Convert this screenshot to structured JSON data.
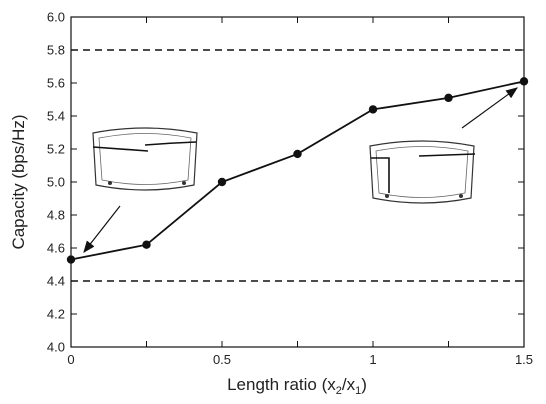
{
  "chart_data": {
    "type": "line",
    "title": "",
    "xlabel": {
      "main": "Length ratio (x",
      "sub1": "2",
      "mid": "/x",
      "sub2": "1",
      "end": ")"
    },
    "ylabel": "Capacity (bps/Hz)",
    "xlim": [
      0,
      1.5
    ],
    "ylim": [
      4.0,
      6.0
    ],
    "xticks": [
      0,
      0.25,
      0.5,
      0.75,
      1.0,
      1.25,
      1.5
    ],
    "xtick_labels": [
      "0",
      "",
      "0.5",
      "",
      "1",
      "",
      "1.5"
    ],
    "yticks": [
      4.0,
      4.2,
      4.4,
      4.6,
      4.8,
      5.0,
      5.2,
      5.4,
      5.6,
      5.8,
      6.0
    ],
    "ytick_labels": [
      "4.0",
      "4.2",
      "4.4",
      "4.6",
      "4.8",
      "5.0",
      "5.2",
      "5.4",
      "5.6",
      "5.8",
      "6.0"
    ],
    "grid": false,
    "series": [
      {
        "x": [
          0,
          0.25,
          0.5,
          0.75,
          1.0,
          1.25,
          1.5
        ],
        "values": [
          4.53,
          4.62,
          5.0,
          5.17,
          5.44,
          5.51,
          5.61
        ],
        "color": "#111111",
        "marker": "circle"
      }
    ],
    "reference_lines": [
      {
        "y": 5.8,
        "style": "dashed",
        "color": "#111111"
      },
      {
        "y": 4.4,
        "style": "dashed",
        "color": "#111111"
      }
    ],
    "annotations": [
      {
        "type": "inset-image",
        "depicts": "windshield-antenna-short-slot",
        "points_to": {
          "x": 0,
          "y": 4.53
        }
      },
      {
        "type": "inset-image",
        "depicts": "windshield-antenna-long-slot",
        "points_to": {
          "x": 1.5,
          "y": 5.61
        }
      }
    ]
  }
}
